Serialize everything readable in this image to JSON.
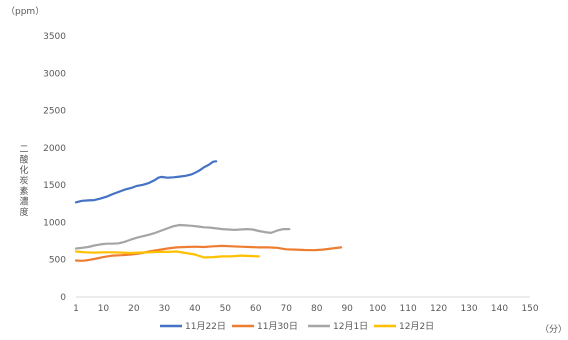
{
  "chart_data": {
    "type": "line",
    "title": "",
    "xlabel": "（分）",
    "ylabel": "二酸化炭素濃度",
    "yunit": "（ppm）",
    "xlim": [
      1,
      150
    ],
    "ylim": [
      0,
      3500
    ],
    "xticks": [
      1,
      10,
      20,
      30,
      40,
      50,
      60,
      70,
      80,
      90,
      100,
      110,
      120,
      130,
      140,
      150
    ],
    "yticks": [
      0,
      500,
      1000,
      1500,
      2000,
      2500,
      3000,
      3500
    ],
    "grid": false,
    "legend": "bottom",
    "series": [
      {
        "name": "11月22日",
        "color": "#4472C4",
        "x": [
          1,
          3,
          5,
          7,
          9,
          11,
          13,
          15,
          17,
          19,
          21,
          23,
          25,
          27,
          28,
          29,
          31,
          33,
          35,
          37,
          39,
          41,
          42,
          43,
          44,
          45,
          46,
          47
        ],
        "y": [
          1270,
          1290,
          1295,
          1300,
          1320,
          1345,
          1380,
          1410,
          1440,
          1460,
          1490,
          1505,
          1530,
          1570,
          1600,
          1610,
          1600,
          1605,
          1615,
          1625,
          1645,
          1685,
          1710,
          1740,
          1760,
          1785,
          1815,
          1820
        ]
      },
      {
        "name": "11月30日",
        "color": "#ED7D31",
        "x": [
          1,
          3,
          5,
          7,
          10,
          13,
          16,
          19,
          22,
          25,
          28,
          31,
          34,
          37,
          40,
          43,
          46,
          49,
          52,
          55,
          58,
          61,
          64,
          67,
          70,
          73,
          76,
          79,
          82,
          85,
          88
        ],
        "y": [
          490,
          485,
          495,
          510,
          535,
          555,
          560,
          570,
          585,
          610,
          630,
          650,
          665,
          670,
          675,
          670,
          680,
          685,
          680,
          675,
          670,
          665,
          665,
          660,
          640,
          635,
          630,
          628,
          635,
          650,
          665
        ]
      },
      {
        "name": "12月1日",
        "color": "#A5A5A5",
        "x": [
          1,
          3,
          5,
          7,
          9,
          11,
          13,
          15,
          17,
          19,
          21,
          23,
          25,
          27,
          29,
          31,
          33,
          35,
          37,
          39,
          41,
          43,
          45,
          47,
          49,
          51,
          53,
          55,
          57,
          59,
          61,
          63,
          65,
          67,
          69,
          71
        ],
        "y": [
          650,
          660,
          670,
          690,
          705,
          715,
          715,
          720,
          740,
          770,
          795,
          815,
          835,
          860,
          890,
          920,
          950,
          965,
          960,
          955,
          945,
          935,
          930,
          920,
          910,
          905,
          900,
          905,
          910,
          905,
          885,
          870,
          860,
          890,
          910,
          910
        ]
      },
      {
        "name": "12月2日",
        "color": "#FFC000",
        "x": [
          1,
          4,
          7,
          10,
          13,
          16,
          19,
          22,
          25,
          28,
          31,
          34,
          37,
          40,
          43,
          46,
          49,
          52,
          55,
          58,
          61
        ],
        "y": [
          610,
          600,
          595,
          600,
          600,
          595,
          590,
          595,
          600,
          605,
          605,
          610,
          590,
          570,
          530,
          535,
          545,
          545,
          555,
          550,
          545
        ]
      }
    ]
  }
}
